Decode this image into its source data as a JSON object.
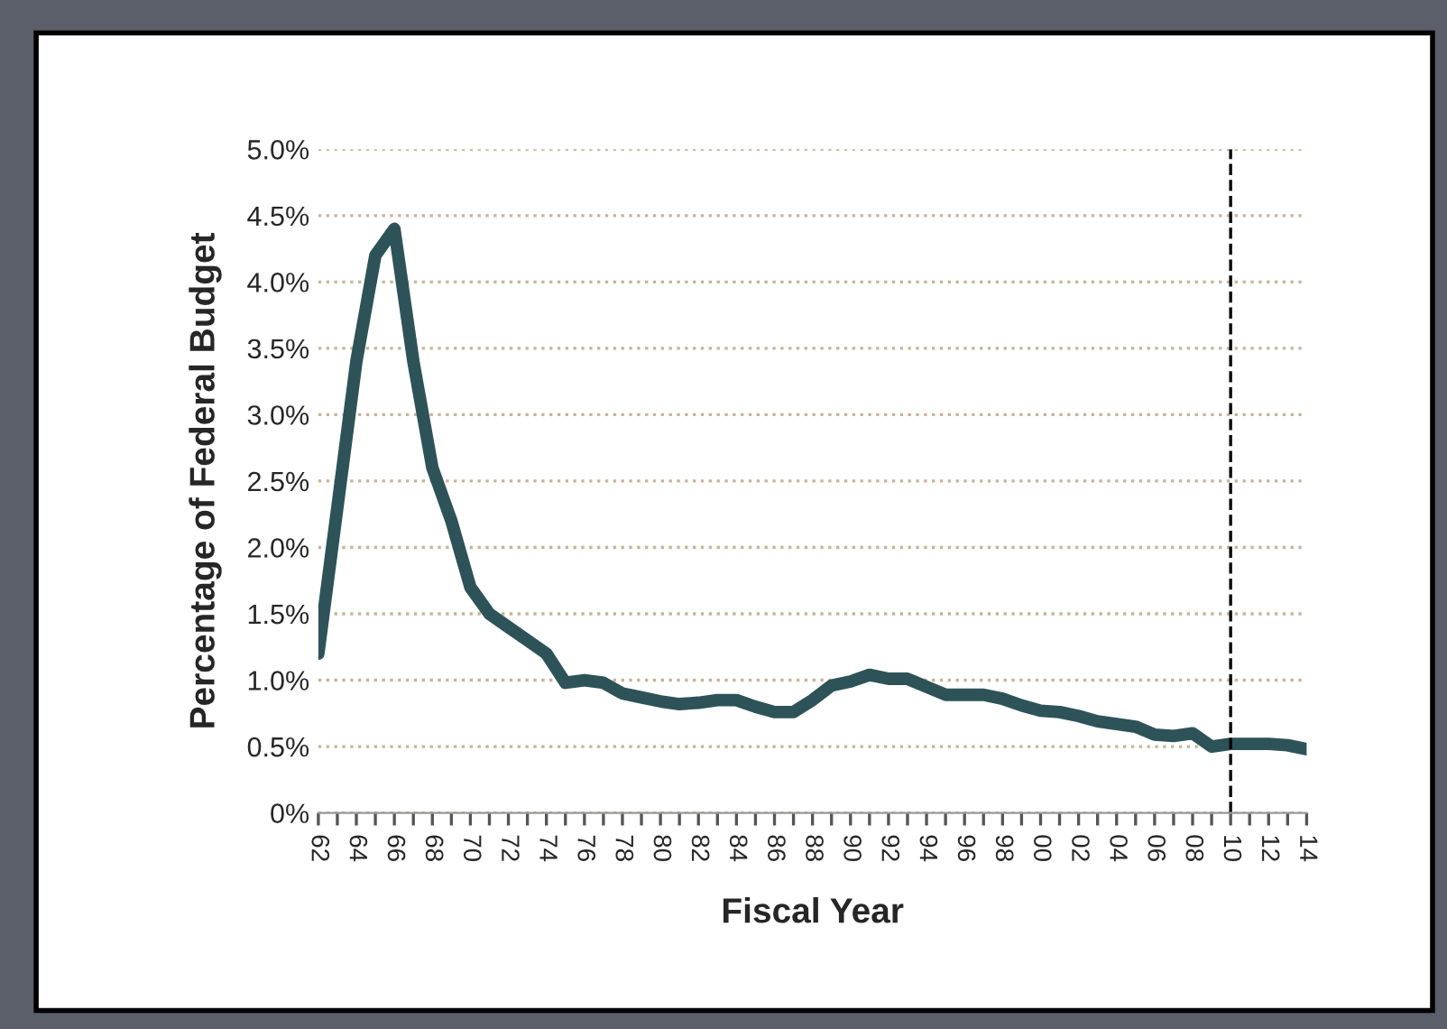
{
  "chart_data": {
    "type": "line",
    "xlabel": "Fiscal Year",
    "ylabel": "Percentage of Federal Budget",
    "x": [
      1962,
      1963,
      1964,
      1965,
      1966,
      1967,
      1968,
      1969,
      1970,
      1971,
      1972,
      1973,
      1974,
      1975,
      1976,
      1977,
      1978,
      1979,
      1980,
      1981,
      1982,
      1983,
      1984,
      1985,
      1986,
      1987,
      1988,
      1989,
      1990,
      1991,
      1992,
      1993,
      1994,
      1995,
      1996,
      1997,
      1998,
      1999,
      2000,
      2001,
      2002,
      2003,
      2004,
      2005,
      2006,
      2007,
      2008,
      2009,
      2010,
      2011,
      2012,
      2013,
      2014
    ],
    "series": [
      {
        "color": "#2d5359",
        "values": [
          1.2,
          2.3,
          3.4,
          4.2,
          4.4,
          3.4,
          2.6,
          2.2,
          1.7,
          1.5,
          1.4,
          1.3,
          1.2,
          0.98,
          1.0,
          0.98,
          0.9,
          0.87,
          0.84,
          0.82,
          0.83,
          0.85,
          0.85,
          0.8,
          0.76,
          0.76,
          0.85,
          0.96,
          0.99,
          1.04,
          1.01,
          1.01,
          0.95,
          0.89,
          0.89,
          0.89,
          0.86,
          0.81,
          0.77,
          0.76,
          0.73,
          0.69,
          0.67,
          0.65,
          0.59,
          0.58,
          0.6,
          0.5,
          0.52,
          0.52,
          0.52,
          0.51,
          0.48
        ]
      }
    ],
    "xlim": [
      1962,
      2014
    ],
    "xticks": [
      {
        "value": 1962,
        "label": "62"
      },
      {
        "value": 1963,
        "label": null
      },
      {
        "value": 1964,
        "label": "64"
      },
      {
        "value": 1965,
        "label": null
      },
      {
        "value": 1966,
        "label": "66"
      },
      {
        "value": 1967,
        "label": null
      },
      {
        "value": 1968,
        "label": "68"
      },
      {
        "value": 1969,
        "label": null
      },
      {
        "value": 1970,
        "label": "70"
      },
      {
        "value": 1971,
        "label": null
      },
      {
        "value": 1972,
        "label": "72"
      },
      {
        "value": 1973,
        "label": null
      },
      {
        "value": 1974,
        "label": "74"
      },
      {
        "value": 1975,
        "label": null
      },
      {
        "value": 1976,
        "label": "76"
      },
      {
        "value": 1977,
        "label": null
      },
      {
        "value": 1978,
        "label": "78"
      },
      {
        "value": 1979,
        "label": null
      },
      {
        "value": 1980,
        "label": "80"
      },
      {
        "value": 1981,
        "label": null
      },
      {
        "value": 1982,
        "label": "82"
      },
      {
        "value": 1983,
        "label": null
      },
      {
        "value": 1984,
        "label": "84"
      },
      {
        "value": 1985,
        "label": null
      },
      {
        "value": 1986,
        "label": "86"
      },
      {
        "value": 1987,
        "label": null
      },
      {
        "value": 1988,
        "label": "88"
      },
      {
        "value": 1989,
        "label": null
      },
      {
        "value": 1990,
        "label": "90"
      },
      {
        "value": 1991,
        "label": null
      },
      {
        "value": 1992,
        "label": "92"
      },
      {
        "value": 1993,
        "label": null
      },
      {
        "value": 1994,
        "label": "94"
      },
      {
        "value": 1995,
        "label": null
      },
      {
        "value": 1996,
        "label": "96"
      },
      {
        "value": 1997,
        "label": null
      },
      {
        "value": 1998,
        "label": "98"
      },
      {
        "value": 1999,
        "label": null
      },
      {
        "value": 2000,
        "label": "00"
      },
      {
        "value": 2001,
        "label": null
      },
      {
        "value": 2002,
        "label": "02"
      },
      {
        "value": 2003,
        "label": null
      },
      {
        "value": 2004,
        "label": "04"
      },
      {
        "value": 2005,
        "label": null
      },
      {
        "value": 2006,
        "label": "06"
      },
      {
        "value": 2007,
        "label": null
      },
      {
        "value": 2008,
        "label": "08"
      },
      {
        "value": 2009,
        "label": null
      },
      {
        "value": 2010,
        "label": "10"
      },
      {
        "value": 2011,
        "label": null
      },
      {
        "value": 2012,
        "label": "12"
      },
      {
        "value": 2013,
        "label": null
      },
      {
        "value": 2014,
        "label": "14"
      }
    ],
    "ylim": [
      0,
      5
    ],
    "yticks": [
      {
        "value": 0,
        "label": "0%"
      },
      {
        "value": 0.5,
        "label": "0.5%"
      },
      {
        "value": 1,
        "label": "1.0%"
      },
      {
        "value": 1.5,
        "label": "1.5%"
      },
      {
        "value": 2,
        "label": "2.0%"
      },
      {
        "value": 2.5,
        "label": "2.5%"
      },
      {
        "value": 3,
        "label": "3.0%"
      },
      {
        "value": 3.5,
        "label": "3.5%"
      },
      {
        "value": 4,
        "label": "4.0%"
      },
      {
        "value": 4.5,
        "label": "4.5%"
      },
      {
        "value": 5,
        "label": "5.0%"
      }
    ],
    "grid": "y",
    "line_style": "solid",
    "ref_lines": [
      {
        "axis": "x",
        "value": 2010,
        "color": "#000000",
        "line_style": "dashed"
      }
    ]
  }
}
